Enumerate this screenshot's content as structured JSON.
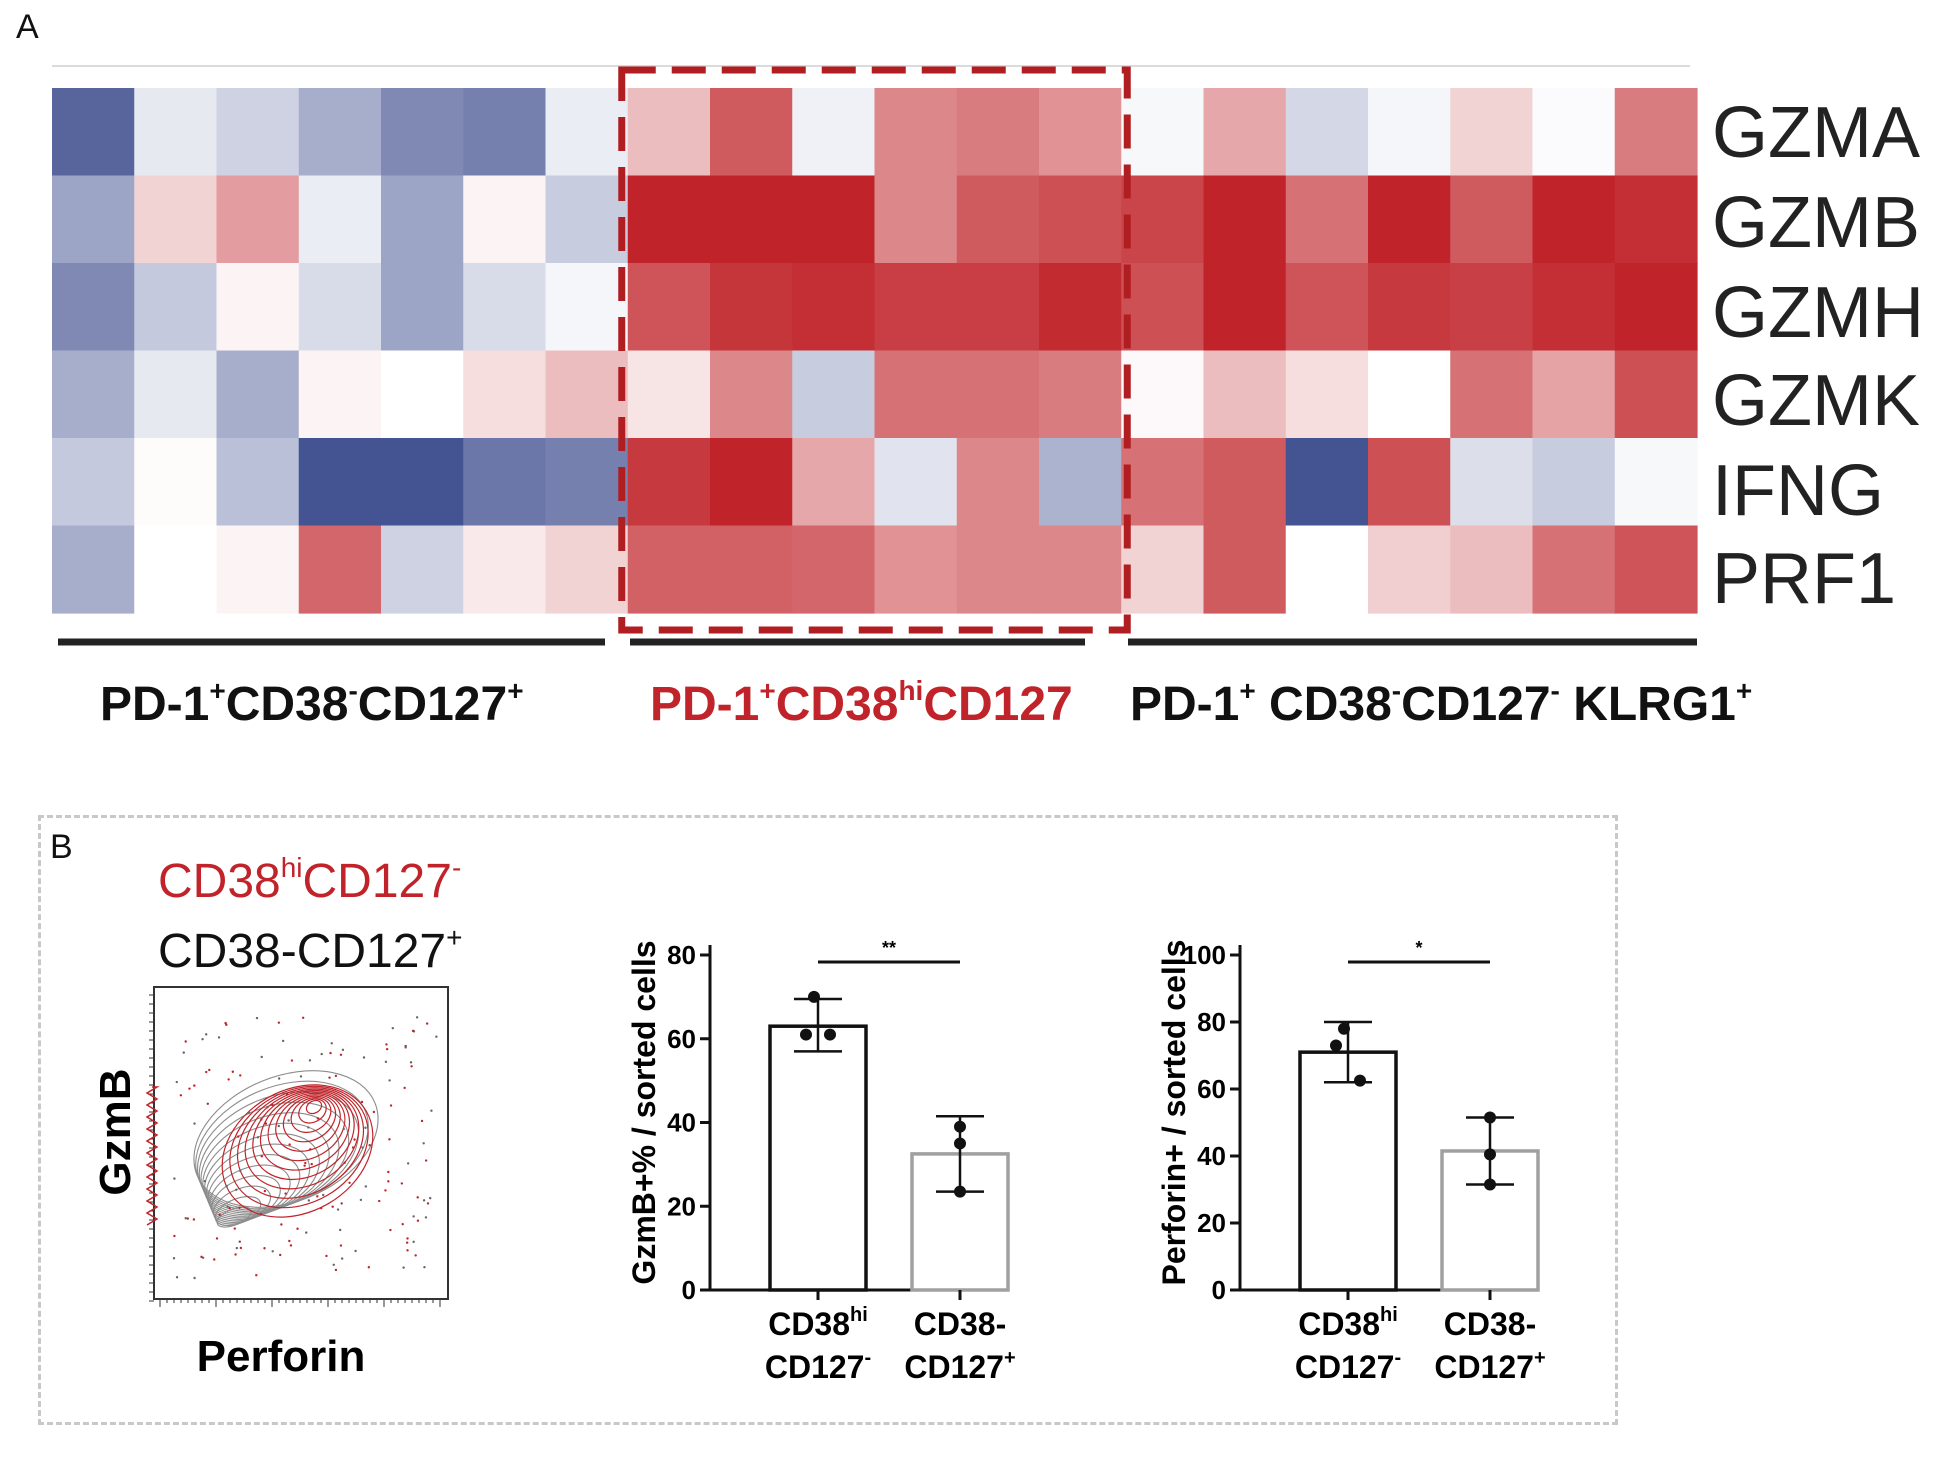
{
  "panels": {
    "a_label": "A",
    "b_label": "B"
  },
  "colors": {
    "high": "#c0242a",
    "mid": "#ffffff",
    "low": "#3a4a8c",
    "highlight_box": "#b01e22",
    "gray_bar": "#a0a0a0"
  },
  "heatmap": {
    "genes": [
      "GZMA",
      "GZMB",
      "GZMH",
      "GZMK",
      "IFNG",
      "PRF1"
    ],
    "groups": [
      {
        "label_parts": [
          {
            "t": "PD-1",
            "sup": false
          },
          {
            "t": "+",
            "sup": true
          },
          {
            "t": "CD38",
            "sup": false
          },
          {
            "t": "-",
            "sup": true
          },
          {
            "t": "CD127",
            "sup": false
          },
          {
            "t": "+",
            "sup": true
          }
        ],
        "color": "#111111"
      },
      {
        "label_parts": [
          {
            "t": "PD-1",
            "sup": false
          },
          {
            "t": "+",
            "sup": true
          },
          {
            "t": "CD38",
            "sup": false
          },
          {
            "t": "hi",
            "sup": true
          },
          {
            "t": "CD127",
            "sup": false
          }
        ],
        "color": "#c0242a"
      },
      {
        "label_parts": [
          {
            "t": "PD-1",
            "sup": false
          },
          {
            "t": "+",
            "sup": true
          },
          {
            "t": " CD38",
            "sup": false
          },
          {
            "t": "-",
            "sup": true
          },
          {
            "t": "CD127",
            "sup": false
          },
          {
            "t": "-",
            "sup": true
          },
          {
            "t": " KLRG1",
            "sup": false
          },
          {
            "t": "+",
            "sup": true
          }
        ],
        "color": "#111111"
      }
    ],
    "values": [
      [
        -0.85,
        -0.12,
        -0.25,
        -0.45,
        -0.65,
        -0.7,
        -0.1,
        0.3,
        0.75,
        -0.08,
        0.55,
        0.6,
        0.5,
        -0.04,
        0.4,
        -0.22,
        -0.05,
        0.2,
        -0.02,
        0.6
      ],
      [
        -0.5,
        0.2,
        0.45,
        -0.1,
        -0.5,
        0.05,
        -0.28,
        1.0,
        1.0,
        1.0,
        0.55,
        0.75,
        0.8,
        0.85,
        1.0,
        0.65,
        1.0,
        0.75,
        1.0,
        0.95
      ],
      [
        -0.65,
        -0.3,
        0.05,
        -0.2,
        -0.5,
        -0.2,
        -0.05,
        0.78,
        0.92,
        0.95,
        0.88,
        0.88,
        0.97,
        0.8,
        1.0,
        0.78,
        0.9,
        0.87,
        0.95,
        1.0
      ],
      [
        -0.45,
        -0.12,
        -0.45,
        0.05,
        0.0,
        0.15,
        0.3,
        0.12,
        0.55,
        -0.28,
        0.65,
        0.65,
        0.6,
        0.03,
        0.3,
        0.15,
        0.0,
        0.65,
        0.42,
        0.8
      ],
      [
        -0.3,
        0.02,
        -0.35,
        -0.95,
        -0.95,
        -0.75,
        -0.7,
        0.9,
        1.0,
        0.4,
        -0.15,
        0.55,
        -0.42,
        0.65,
        0.75,
        -0.95,
        0.8,
        -0.18,
        -0.28,
        -0.04
      ],
      [
        -0.45,
        0.0,
        0.05,
        0.7,
        -0.25,
        0.1,
        0.2,
        0.72,
        0.72,
        0.7,
        0.5,
        0.55,
        0.55,
        0.2,
        0.75,
        0.0,
        0.22,
        0.3,
        0.65,
        0.78
      ]
    ]
  },
  "legend": {
    "line1_parts": [
      {
        "t": "CD38",
        "sup": false
      },
      {
        "t": "hi",
        "sup": true
      },
      {
        "t": "CD127",
        "sup": false
      },
      {
        "t": "-",
        "sup": true
      }
    ],
    "line2_parts": [
      {
        "t": "CD38-CD127",
        "sup": false
      },
      {
        "t": "+",
        "sup": true
      }
    ],
    "line1_color": "#c0242a",
    "line2_color": "#111111"
  },
  "flow": {
    "xlabel": "Perforin",
    "ylabel": "GzmB"
  },
  "chart_data": [
    {
      "type": "bar",
      "ylabel": "GzmB+% / sorted cells",
      "ylim": [
        0,
        80
      ],
      "yticks": [
        0,
        20,
        40,
        60,
        80
      ],
      "significance": "**",
      "categories": [
        [
          "CD38",
          "hi",
          "CD127",
          "-"
        ],
        [
          "CD38-",
          "",
          "CD127",
          "+"
        ]
      ],
      "values": [
        63,
        32.5
      ],
      "errors": [
        [
          57,
          69.5
        ],
        [
          23.5,
          41.5
        ]
      ],
      "points": [
        [
          70,
          61,
          61
        ],
        [
          39,
          35,
          23.5
        ]
      ],
      "bar_colors": [
        "#111111",
        "#a0a0a0"
      ]
    },
    {
      "type": "bar",
      "ylabel": "Perforin+ / sorted cells",
      "ylim": [
        0,
        100
      ],
      "yticks": [
        0,
        20,
        40,
        60,
        80,
        100
      ],
      "significance": "*",
      "categories": [
        [
          "CD38",
          "hi",
          "CD127",
          "-"
        ],
        [
          "CD38-",
          "",
          "CD127",
          "+"
        ]
      ],
      "values": [
        71,
        41.5
      ],
      "errors": [
        [
          62,
          80
        ],
        [
          31.5,
          51.5
        ]
      ],
      "points": [
        [
          78,
          73,
          62.5
        ],
        [
          51.5,
          40.5,
          31.5
        ]
      ],
      "bar_colors": [
        "#111111",
        "#a0a0a0"
      ]
    }
  ]
}
